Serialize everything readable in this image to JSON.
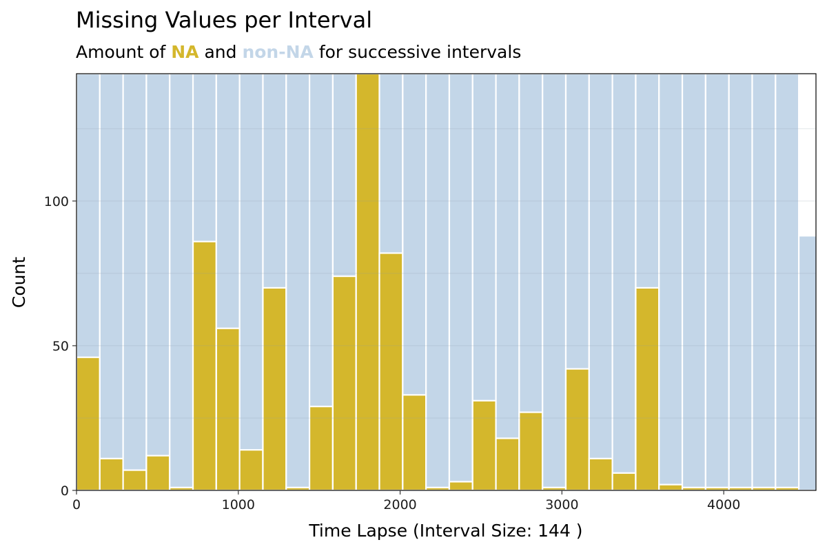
{
  "chart_data": {
    "type": "bar",
    "title": "Missing Values per Interval",
    "subtitle": {
      "prefix": "Amount of ",
      "na_label": "NA",
      "middle": " and ",
      "nonna_label": "non-NA",
      "suffix": " for successive intervals"
    },
    "xlabel": "Time Lapse (Interval Size: 144 )",
    "ylabel": "Count",
    "xlim": [
      0,
      4570
    ],
    "ylim": [
      0,
      144
    ],
    "x_ticks": [
      0,
      1000,
      2000,
      3000,
      4000
    ],
    "y_ticks": [
      0,
      50,
      100
    ],
    "grid": true,
    "interval_size": 144,
    "colors": {
      "na": "#D4B72C",
      "non_na": "#C3D6E8",
      "bar_outline": "#ffffff",
      "panel_border": "#000000"
    },
    "series": [
      {
        "name": "NA",
        "values": [
          46,
          11,
          7,
          12,
          1,
          86,
          56,
          14,
          70,
          1,
          29,
          74,
          144,
          82,
          33,
          1,
          3,
          31,
          18,
          27,
          1,
          42,
          11,
          6,
          70,
          2,
          1,
          1,
          1,
          1,
          1,
          0
        ]
      },
      {
        "name": "non-NA",
        "values": [
          98,
          133,
          137,
          132,
          143,
          58,
          88,
          130,
          74,
          143,
          115,
          70,
          0,
          62,
          111,
          143,
          141,
          113,
          126,
          117,
          143,
          102,
          133,
          138,
          74,
          142,
          143,
          143,
          143,
          143,
          143,
          88
        ]
      }
    ]
  }
}
